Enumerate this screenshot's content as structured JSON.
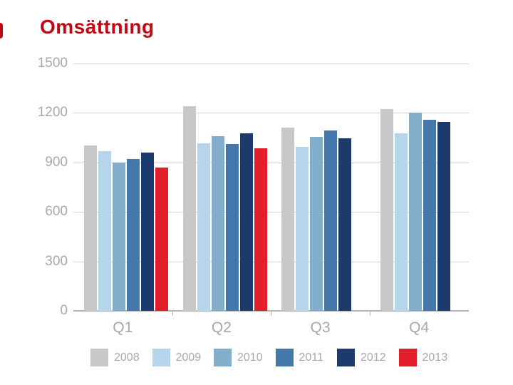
{
  "page": {
    "title": "Omsättning"
  },
  "colors": {
    "title_red": "#c00712",
    "accent_red": "#c00712",
    "gridline": "#d2d2d2",
    "axis_line": "#b3b4b6",
    "axis_text": "#a8a8a8"
  },
  "chart_data": {
    "type": "bar",
    "title": "Omsättning",
    "categories": [
      "Q1",
      "Q2",
      "Q3",
      "Q4"
    ],
    "series": [
      {
        "name": "2008",
        "color": "#c7c8ca",
        "values": [
          1005,
          1240,
          1110,
          1225
        ]
      },
      {
        "name": "2009",
        "color": "#b6d4ea",
        "values": [
          970,
          1015,
          995,
          1075
        ]
      },
      {
        "name": "2010",
        "color": "#83aecb",
        "values": [
          900,
          1060,
          1055,
          1200
        ]
      },
      {
        "name": "2011",
        "color": "#4478ad",
        "values": [
          920,
          1010,
          1095,
          1160
        ]
      },
      {
        "name": "2012",
        "color": "#1d3a6d",
        "values": [
          960,
          1075,
          1045,
          1145
        ]
      },
      {
        "name": "2013",
        "color": "#e31d2c",
        "values": [
          870,
          985,
          null,
          null
        ]
      }
    ],
    "ylim": [
      0,
      1500
    ],
    "yticks": [
      0,
      300,
      600,
      900,
      1200,
      1500
    ],
    "xlabel": "",
    "ylabel": "",
    "grid": true,
    "legend_position": "bottom"
  }
}
